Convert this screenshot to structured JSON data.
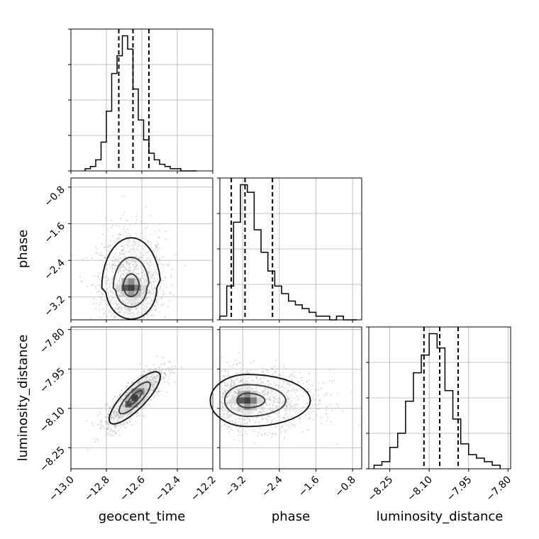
{
  "chart_data": {
    "type": "corner",
    "grid": true,
    "parameters": [
      "geocent_time",
      "phase",
      "luminosity_distance"
    ],
    "axes": {
      "geocent_time": {
        "range": [
          -13.0,
          -12.2
        ],
        "ticks": [
          -13.0,
          -12.8,
          -12.6,
          -12.4,
          -12.2
        ],
        "tick_labels": [
          "−13.0",
          "−12.8",
          "−12.6",
          "−12.4",
          "−12.2"
        ]
      },
      "phase": {
        "range": [
          -3.7,
          -0.6
        ],
        "ticks": [
          -3.2,
          -2.4,
          -1.6,
          -0.8
        ],
        "tick_labels": [
          "−3.2",
          "−2.4",
          "−1.6",
          "−0.8"
        ]
      },
      "luminosity_distance": {
        "range": [
          -8.33,
          -7.79
        ],
        "ticks": [
          -8.25,
          -8.1,
          -7.95,
          -7.8
        ],
        "tick_labels": [
          "−8.25",
          "−8.10",
          "−7.95",
          "−7.80"
        ]
      }
    },
    "histograms": [
      {
        "parameter": "geocent_time",
        "edges": [
          -12.92,
          -12.89,
          -12.86,
          -12.83,
          -12.8,
          -12.77,
          -12.74,
          -12.71,
          -12.68,
          -12.65,
          -12.62,
          -12.59,
          -12.56,
          -12.53,
          -12.5,
          -12.47,
          -12.44,
          -12.41,
          -12.38,
          -12.35,
          -12.32,
          -12.29
        ],
        "counts": [
          1,
          2,
          5,
          13,
          27,
          44,
          52,
          61,
          55,
          37,
          23,
          14,
          8,
          5,
          3,
          2,
          1,
          1,
          0,
          0,
          0
        ],
        "quantiles": [
          -12.73,
          -12.65,
          -12.56
        ]
      },
      {
        "parameter": "phase",
        "edges": [
          -3.7,
          -3.55,
          -3.4,
          -3.25,
          -3.1,
          -2.95,
          -2.8,
          -2.65,
          -2.5,
          -2.35,
          -2.2,
          -2.05,
          -1.9,
          -1.75,
          -1.6,
          -1.45,
          -1.3,
          -1.15,
          -1.0,
          -0.85,
          -0.7
        ],
        "counts": [
          1,
          9,
          26,
          36,
          34,
          24,
          18,
          13,
          9,
          7,
          5,
          4,
          3,
          2,
          1,
          1,
          0,
          1,
          0,
          0
        ],
        "quantiles": [
          -3.45,
          -3.15,
          -2.55
        ]
      },
      {
        "parameter": "luminosity_distance",
        "edges": [
          -8.31,
          -8.28,
          -8.25,
          -8.22,
          -8.19,
          -8.16,
          -8.13,
          -8.1,
          -8.07,
          -8.04,
          -8.01,
          -7.98,
          -7.95,
          -7.92,
          -7.89,
          -7.86,
          -7.83
        ],
        "counts": [
          1,
          2,
          6,
          10,
          19,
          27,
          32,
          38,
          34,
          22,
          14,
          7,
          4,
          3,
          2,
          1
        ],
        "quantiles": [
          -8.12,
          -8.06,
          -7.99
        ]
      }
    ],
    "scatter_2d": [
      {
        "x": "geocent_time",
        "y": "phase",
        "center": [
          -12.66,
          -3.0
        ],
        "spread": [
          0.08,
          0.38
        ],
        "skew": 0.25
      },
      {
        "x": "geocent_time",
        "y": "luminosity_distance",
        "center": [
          -12.64,
          -8.06
        ],
        "spread": [
          0.08,
          0.055
        ],
        "rho": 0.82
      },
      {
        "x": "phase",
        "y": "luminosity_distance",
        "center": [
          -3.1,
          -8.07
        ],
        "spread": [
          0.45,
          0.055
        ],
        "skew": -0.2
      }
    ]
  }
}
